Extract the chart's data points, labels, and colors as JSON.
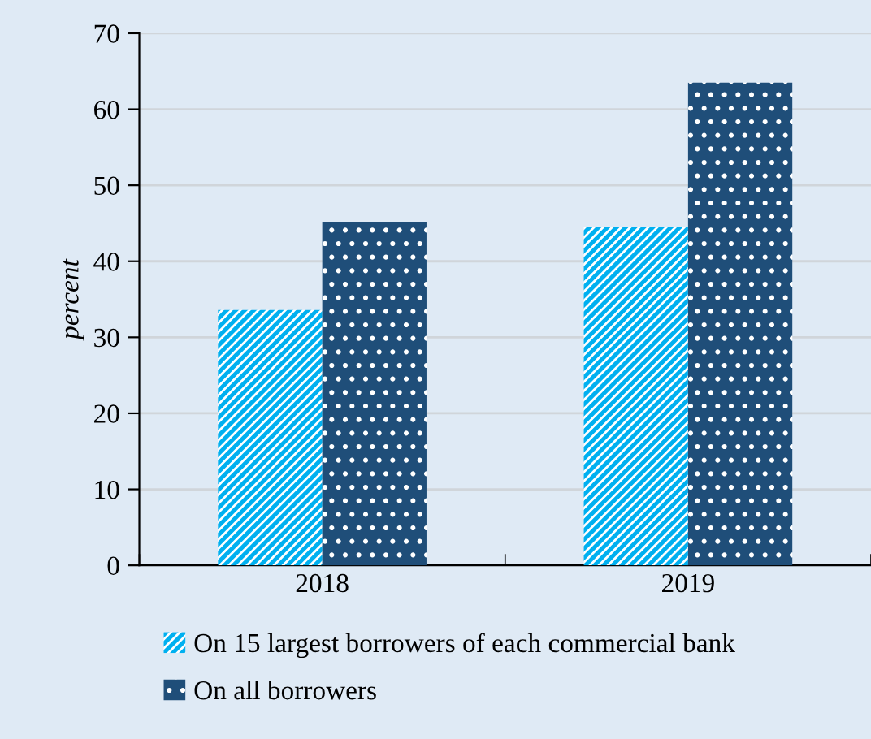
{
  "chart_data": {
    "type": "bar",
    "ylabel": "percent",
    "categories": [
      "2018",
      "2019"
    ],
    "series": [
      {
        "name": "On 15 largest borrowers of each commercial bank",
        "color": "#00b0f0",
        "values": [
          33.6,
          44.5
        ]
      },
      {
        "name": "On all borrowers",
        "color": "#1f4e79",
        "values": [
          45.2,
          63.5
        ]
      }
    ],
    "ylim": [
      0,
      70
    ],
    "yticks": [
      0,
      10,
      20,
      30,
      40,
      50,
      60,
      70
    ],
    "grid": "y",
    "legend": "bottom"
  }
}
